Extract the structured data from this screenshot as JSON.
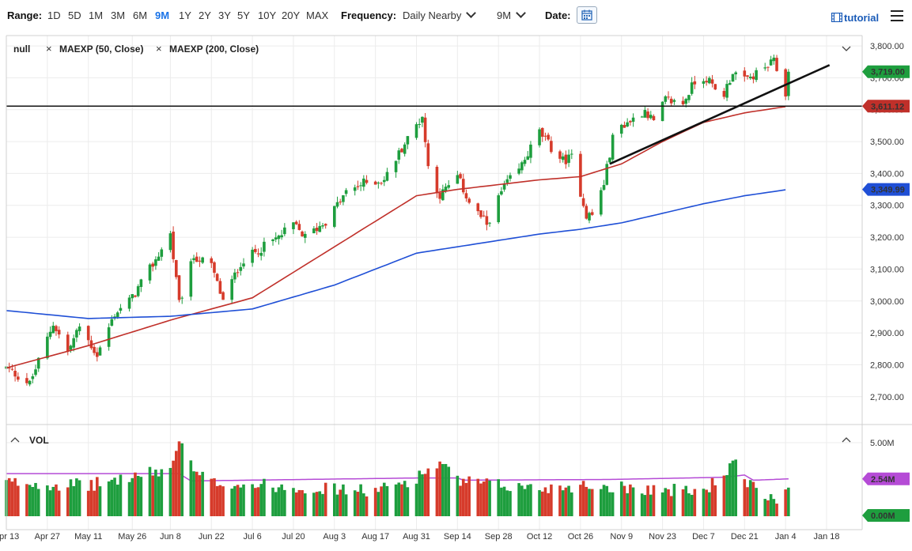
{
  "toolbar": {
    "range_label": "Range:",
    "ranges": [
      "1D",
      "5D",
      "1M",
      "3M",
      "6M",
      "9M",
      "1Y",
      "2Y",
      "3Y",
      "5Y",
      "10Y",
      "20Y",
      "MAX"
    ],
    "active_range": "9M",
    "frequency_label": "Frequency:",
    "frequency_value": "Daily Nearby",
    "period_value": "9M",
    "date_label": "Date:",
    "tutorial_label": "tutorial",
    "icons": [
      "chevron-down-icon",
      "calendar-icon",
      "film-icon",
      "menu-icon"
    ]
  },
  "legend": {
    "items": [
      "null",
      "MAEXP (50, Close)",
      "MAEXP (200, Close)"
    ],
    "remove_icon": "×"
  },
  "colors": {
    "up": "#1e9e3e",
    "down": "#d63b2b",
    "ma50": "#c0302a",
    "ma200": "#1f4fd6",
    "vol_avg": "#b54bd6",
    "last_price_badge": "#1e9e3e",
    "level_badge": "#c0302a",
    "ma200_badge": "#1f4fd6"
  },
  "chart_data": [
    {
      "type": "candlestick",
      "title": "",
      "x_tick_labels": [
        "Apr 13",
        "Apr 27",
        "May 11",
        "May 26",
        "Jun 8",
        "Jun 22",
        "Jul 6",
        "Jul 20",
        "Aug 3",
        "Aug 17",
        "Aug 31",
        "Sep 14",
        "Sep 28",
        "Oct 12",
        "Oct 26",
        "Nov 9",
        "Nov 23",
        "Dec 7",
        "Dec 21",
        "Jan 4",
        "Jan 18"
      ],
      "y_tick_labels": [
        "3,800.00",
        "3,700.00",
        "3,600.00",
        "3,500.00",
        "3,400.00",
        "3,300.00",
        "3,200.00",
        "3,100.00",
        "3,000.00",
        "2,900.00",
        "2,800.00",
        "2,700.00"
      ],
      "ylim": [
        2630,
        3820
      ],
      "grid": true,
      "price_anchors": [
        [
          "Apr 13",
          2790
        ],
        [
          "Apr 21",
          2740
        ],
        [
          "Apr 29",
          2930
        ],
        [
          "May 4",
          2840
        ],
        [
          "May 8",
          2920
        ],
        [
          "May 14",
          2830
        ],
        [
          "May 20",
          2960
        ],
        [
          "May 26",
          3010
        ],
        [
          "Jun 3",
          3130
        ],
        [
          "Jun 8",
          3210
        ],
        [
          "Jun 11",
          2990
        ],
        [
          "Jun 16",
          3140
        ],
        [
          "Jun 22",
          3110
        ],
        [
          "Jun 26",
          3000
        ],
        [
          "Jul 2",
          3120
        ],
        [
          "Jul 8",
          3160
        ],
        [
          "Jul 15",
          3200
        ],
        [
          "Jul 20",
          3240
        ],
        [
          "Jul 24",
          3200
        ],
        [
          "Jul 31",
          3250
        ],
        [
          "Aug 7",
          3340
        ],
        [
          "Aug 13",
          3370
        ],
        [
          "Aug 20",
          3380
        ],
        [
          "Aug 26",
          3480
        ],
        [
          "Sep 2",
          3580
        ],
        [
          "Sep 4",
          3420
        ],
        [
          "Sep 8",
          3330
        ],
        [
          "Sep 14",
          3390
        ],
        [
          "Sep 18",
          3310
        ],
        [
          "Sep 24",
          3240
        ],
        [
          "Sep 30",
          3360
        ],
        [
          "Oct 5",
          3410
        ],
        [
          "Oct 9",
          3480
        ],
        [
          "Oct 12",
          3530
        ],
        [
          "Oct 16",
          3480
        ],
        [
          "Oct 20",
          3440
        ],
        [
          "Oct 23",
          3450
        ],
        [
          "Oct 28",
          3270
        ],
        [
          "Oct 30",
          3270
        ],
        [
          "Nov 3",
          3370
        ],
        [
          "Nov 6",
          3510
        ],
        [
          "Nov 9",
          3550
        ],
        [
          "Nov 13",
          3570
        ],
        [
          "Nov 17",
          3600
        ],
        [
          "Nov 20",
          3560
        ],
        [
          "Nov 24",
          3630
        ],
        [
          "Nov 30",
          3620
        ],
        [
          "Dec 4",
          3690
        ],
        [
          "Dec 8",
          3700
        ],
        [
          "Dec 11",
          3660
        ],
        [
          "Dec 14",
          3650
        ],
        [
          "Dec 17",
          3720
        ],
        [
          "Dec 21",
          3690
        ],
        [
          "Dec 23",
          3700
        ],
        [
          "Dec 28",
          3730
        ],
        [
          "Dec 31",
          3750
        ],
        [
          "Jan 4",
          3650
        ],
        [
          "Jan 5",
          3719
        ]
      ],
      "last_price": 3719.0,
      "last_price_label": "3,719.00",
      "horizontal_level": 3611.12,
      "horizontal_level_label": "3,611.12",
      "trendline": [
        [
          "Nov 5",
          3430
        ],
        [
          "Jan 19",
          3740
        ]
      ],
      "series": [
        {
          "name": "MAEXP (50, Close)",
          "values": [
            [
              "Apr 13",
              2790
            ],
            [
              "May 11",
              2860
            ],
            [
              "Jun 8",
              2940
            ],
            [
              "Jul 6",
              3010
            ],
            [
              "Aug 3",
              3170
            ],
            [
              "Aug 31",
              3330
            ],
            [
              "Sep 14",
              3350
            ],
            [
              "Oct 12",
              3380
            ],
            [
              "Oct 26",
              3390
            ],
            [
              "Nov 9",
              3430
            ],
            [
              "Nov 23",
              3500
            ],
            [
              "Dec 7",
              3560
            ],
            [
              "Dec 21",
              3590
            ],
            [
              "Jan 5",
              3611
            ]
          ]
        },
        {
          "name": "MAEXP (200, Close)",
          "values": [
            [
              "Apr 13",
              2970
            ],
            [
              "May 11",
              2945
            ],
            [
              "Jun 8",
              2952
            ],
            [
              "Jul 6",
              2975
            ],
            [
              "Aug 3",
              3050
            ],
            [
              "Aug 31",
              3150
            ],
            [
              "Sep 14",
              3170
            ],
            [
              "Oct 12",
              3210
            ],
            [
              "Oct 26",
              3225
            ],
            [
              "Nov 9",
              3245
            ],
            [
              "Nov 23",
              3275
            ],
            [
              "Dec 7",
              3305
            ],
            [
              "Dec 21",
              3330
            ],
            [
              "Jan 5",
              3349.99
            ]
          ]
        }
      ],
      "ma200_last_label": "3,349.99"
    },
    {
      "type": "bar",
      "title": "VOL",
      "y_tick_labels": [
        "5.00M",
        "2.54M",
        "0.00M"
      ],
      "ylim": [
        0,
        5.0
      ],
      "avg_value": 2.54,
      "avg_label": "2.54M",
      "min_label": "0.00M",
      "volume_anchors": [
        [
          "Apr 13",
          2.3
        ],
        [
          "May 11",
          2.1
        ],
        [
          "Jun 8",
          3.2
        ],
        [
          "Jun 11",
          5.2
        ],
        [
          "Jun 16",
          3.0
        ],
        [
          "Jun 22",
          2.3
        ],
        [
          "Jul 20",
          2.0
        ],
        [
          "Aug 17",
          1.7
        ],
        [
          "Aug 31",
          2.6
        ],
        [
          "Sep 4",
          3.2
        ],
        [
          "Sep 8",
          3.6
        ],
        [
          "Sep 14",
          2.4
        ],
        [
          "Sep 28",
          2.1
        ],
        [
          "Oct 12",
          1.9
        ],
        [
          "Oct 26",
          2.1
        ],
        [
          "Nov 9",
          2.0
        ],
        [
          "Nov 23",
          1.8
        ],
        [
          "Dec 7",
          1.7
        ],
        [
          "Dec 18",
          3.6
        ],
        [
          "Dec 21",
          2.3
        ],
        [
          "Dec 31",
          1.1
        ],
        [
          "Jan 4",
          1.8
        ]
      ],
      "avg_series": [
        [
          "Apr 13",
          2.9
        ],
        [
          "Jun 11",
          2.9
        ],
        [
          "Jun 15",
          2.4
        ],
        [
          "Aug 31",
          2.6
        ],
        [
          "Sep 14",
          2.6
        ],
        [
          "Sep 16",
          2.45
        ],
        [
          "Nov 5",
          2.5
        ],
        [
          "Dec 14",
          2.65
        ],
        [
          "Dec 21",
          2.8
        ],
        [
          "Dec 24",
          2.45
        ],
        [
          "Jan 5",
          2.54
        ]
      ]
    }
  ]
}
